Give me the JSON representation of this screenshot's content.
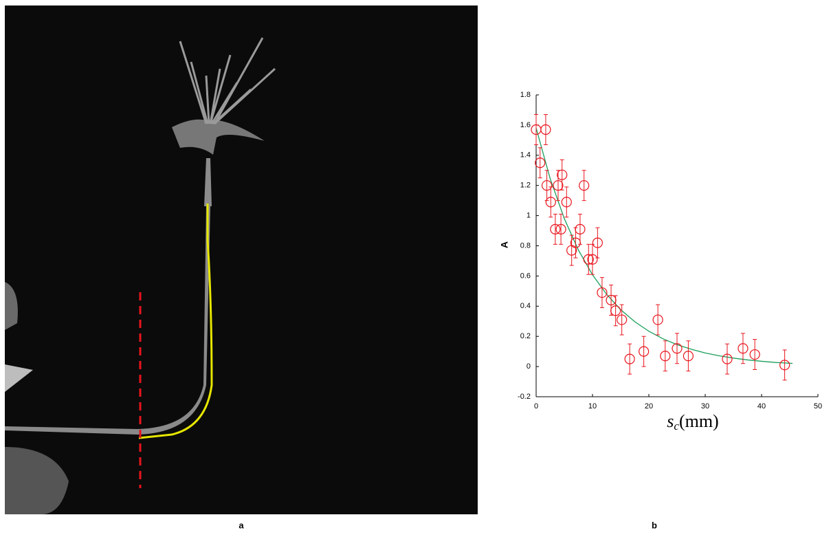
{
  "chart_data": {
    "type": "scatter",
    "x_label": {
      "base": "s",
      "sub": "c",
      "rest": "(mm)"
    },
    "y_label": "A",
    "xlim": [
      0,
      50
    ],
    "xticks": [
      0,
      10,
      20,
      30,
      40,
      50
    ],
    "ylim": [
      -0.2,
      1.8
    ],
    "yticks": [
      -0.2,
      0,
      0.2,
      0.4,
      0.6,
      0.8,
      1,
      1.2,
      1.4,
      1.6,
      1.8
    ],
    "color": "#e8141c",
    "x": [
      0,
      0.7,
      1.7,
      1.9,
      2.6,
      3.4,
      3.9,
      4.4,
      4.6,
      5.4,
      6.3,
      7.0,
      7.8,
      8.5,
      9.3,
      10.0,
      10.9,
      11.7,
      13.3,
      14.1,
      15.2,
      16.6,
      19.1,
      21.6,
      22.9,
      25.0,
      27.0,
      33.9,
      36.7,
      38.8,
      44.1
    ],
    "values": [
      1.57,
      1.35,
      1.57,
      1.2,
      1.09,
      0.91,
      1.2,
      0.91,
      1.27,
      1.09,
      0.77,
      0.82,
      0.91,
      1.2,
      0.71,
      0.71,
      0.82,
      0.49,
      0.44,
      0.37,
      0.31,
      0.05,
      0.1,
      0.31,
      0.07,
      0.12,
      0.07,
      0.05,
      0.12,
      0.08,
      0.01
    ],
    "errors": [
      0.1,
      0.1,
      0.1,
      0.1,
      0.1,
      0.1,
      0.1,
      0.1,
      0.1,
      0.1,
      0.1,
      0.1,
      0.1,
      0.1,
      0.1,
      0.1,
      0.1,
      0.1,
      0.1,
      0.1,
      0.1,
      0.1,
      0.1,
      0.1,
      0.1,
      0.1,
      0.1,
      0.1,
      0.1,
      0.1,
      0.1
    ],
    "fit": {
      "color": "#1a9e5a",
      "x": [
        0,
        2.5,
        5,
        7.5,
        10,
        12.5,
        15,
        17.5,
        20,
        22.5,
        25,
        27.5,
        30,
        32.5,
        35,
        37.5,
        40,
        42.5,
        45.5
      ],
      "values": [
        1.58,
        1.244,
        0.98,
        0.772,
        0.608,
        0.479,
        0.377,
        0.297,
        0.234,
        0.184,
        0.145,
        0.115,
        0.09,
        0.071,
        0.056,
        0.044,
        0.035,
        0.027,
        0.021
      ]
    }
  },
  "panel_labels": [
    "a",
    "b"
  ]
}
